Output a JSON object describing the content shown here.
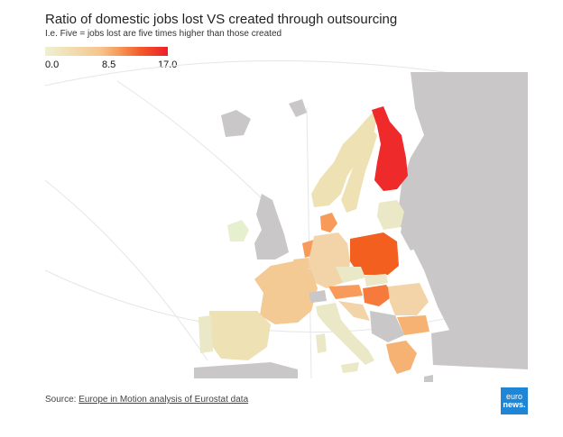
{
  "title": "Ratio of domestic jobs lost VS created through outsourcing",
  "subtitle": "I.e. Five = jobs lost are five times higher than those created",
  "legend": {
    "min_label": "0.0",
    "mid_label": "8.5",
    "max_label": "17.0",
    "colors": [
      "#eef1d2",
      "#f6c58e",
      "#f79a5a",
      "#f25a28",
      "#ee1e2c"
    ]
  },
  "source": {
    "prefix": "Source: ",
    "link_text": "Europe in Motion analysis of Eurostat data"
  },
  "logo": {
    "line1": "euro",
    "line2": "news."
  },
  "colors": {
    "no_data": "#c9c7c7",
    "finland": "#ee2a2a",
    "poland": "#f25f1f",
    "orange": "#f79a5a",
    "light": "#f3d4a9",
    "pale": "#eae8c6"
  }
}
